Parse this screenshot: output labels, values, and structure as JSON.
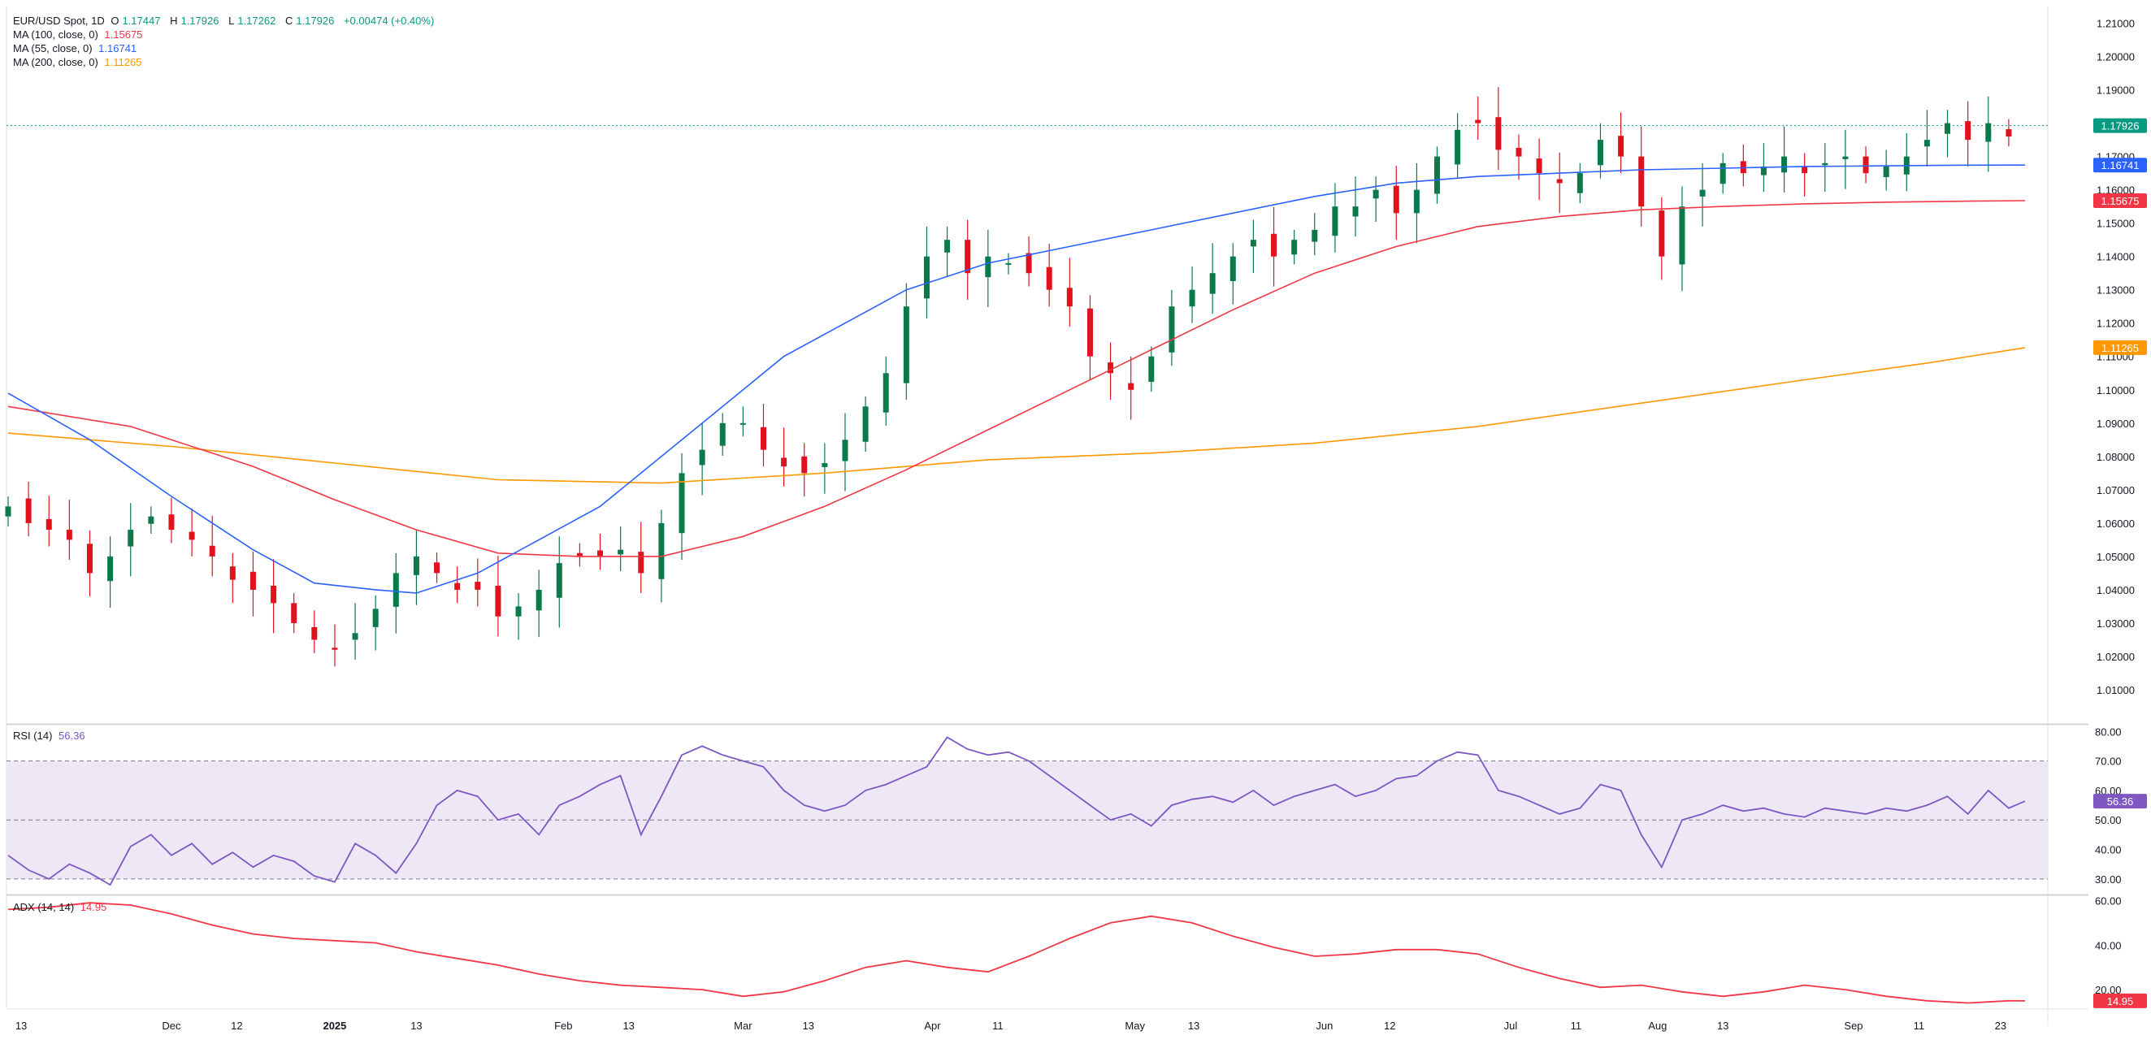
{
  "header": {
    "symbol": "EUR/USD Spot, 1D",
    "open_label": "O",
    "open": "1.17447",
    "high_label": "H",
    "high": "1.17926",
    "low_label": "L",
    "low": "1.17262",
    "close_label": "C",
    "close": "1.17926",
    "change": "+0.00474 (+0.40%)"
  },
  "indicators": [
    {
      "label": "MA (100, close, 0)",
      "value": "1.15675",
      "color": "#f23645"
    },
    {
      "label": "MA (55, close, 0)",
      "value": "1.16741",
      "color": "#2962ff"
    },
    {
      "label": "MA (200, close, 0)",
      "value": "1.11265",
      "color": "#ff9800"
    }
  ],
  "rsi": {
    "label": "RSI (14)",
    "value": "56.36",
    "color": "#7e57c2"
  },
  "adx": {
    "label": "ADX (14, 14)",
    "value": "14.95",
    "color": "#f23645"
  },
  "colors": {
    "up": "#089981",
    "down": "#f23645",
    "candle_up": "#0b7a4b",
    "candle_down": "#e0121e",
    "grid": "#f0f3fa",
    "rsi_band": "#ede7f6"
  },
  "chart_data": [
    {
      "type": "candlestick",
      "title": "EUR/USD Spot, 1D",
      "y_ticks": [
        "1.21000",
        "1.20000",
        "1.19000",
        "1.18000",
        "1.17000",
        "1.16000",
        "1.15000",
        "1.14000",
        "1.13000",
        "1.12000",
        "1.11000",
        "1.10000",
        "1.09000",
        "1.08000",
        "1.07000",
        "1.06000",
        "1.05000",
        "1.04000",
        "1.03000",
        "1.02000",
        "1.01000"
      ],
      "ylim": [
        1.0,
        1.215
      ],
      "x_ticks": [
        "13",
        "Dec",
        "12",
        "2025",
        "13",
        "Feb",
        "13",
        "Mar",
        "13",
        "Apr",
        "11",
        "May",
        "13",
        "Jun",
        "12",
        "Jul",
        "11",
        "Aug",
        "13",
        "Sep",
        "11",
        "23"
      ],
      "last_price": "1.17926",
      "price_badges": [
        {
          "value": "1.17926",
          "color": "#089981"
        },
        {
          "value": "1.16741",
          "color": "#2962ff"
        },
        {
          "value": "1.15675",
          "color": "#f23645"
        },
        {
          "value": "1.11265",
          "color": "#ff9800"
        }
      ],
      "close_path": [
        [
          0,
          1.065
        ],
        [
          5,
          1.06
        ],
        [
          10,
          1.058
        ],
        [
          15,
          1.055
        ],
        [
          20,
          1.045
        ],
        [
          25,
          1.05
        ],
        [
          30,
          1.058
        ],
        [
          35,
          1.062
        ],
        [
          40,
          1.058
        ],
        [
          45,
          1.055
        ],
        [
          50,
          1.05
        ],
        [
          55,
          1.043
        ],
        [
          60,
          1.04
        ],
        [
          65,
          1.036
        ],
        [
          70,
          1.03
        ],
        [
          75,
          1.025
        ],
        [
          80,
          1.022
        ],
        [
          88,
          1.03
        ],
        [
          95,
          1.045
        ],
        [
          100,
          1.05
        ],
        [
          105,
          1.045
        ],
        [
          110,
          1.04
        ],
        [
          115,
          1.04
        ],
        [
          120,
          1.032
        ],
        [
          125,
          1.035
        ],
        [
          130,
          1.04
        ],
        [
          135,
          1.048
        ],
        [
          140,
          1.05
        ],
        [
          145,
          1.05
        ],
        [
          150,
          1.052
        ],
        [
          155,
          1.045
        ],
        [
          160,
          1.06
        ],
        [
          165,
          1.075
        ],
        [
          170,
          1.082
        ],
        [
          175,
          1.09
        ],
        [
          180,
          1.09
        ],
        [
          185,
          1.082
        ],
        [
          190,
          1.077
        ],
        [
          195,
          1.075
        ],
        [
          200,
          1.078
        ],
        [
          205,
          1.085
        ],
        [
          210,
          1.095
        ],
        [
          215,
          1.105
        ],
        [
          220,
          1.125
        ],
        [
          225,
          1.14
        ],
        [
          230,
          1.145
        ],
        [
          235,
          1.135
        ],
        [
          240,
          1.14
        ],
        [
          245,
          1.138
        ],
        [
          250,
          1.135
        ],
        [
          255,
          1.13
        ],
        [
          260,
          1.125
        ],
        [
          265,
          1.11
        ],
        [
          270,
          1.105
        ],
        [
          275,
          1.1
        ],
        [
          280,
          1.11
        ],
        [
          285,
          1.125
        ],
        [
          290,
          1.13
        ],
        [
          295,
          1.135
        ],
        [
          300,
          1.14
        ],
        [
          305,
          1.145
        ],
        [
          310,
          1.14
        ],
        [
          315,
          1.145
        ],
        [
          320,
          1.148
        ],
        [
          325,
          1.155
        ],
        [
          330,
          1.155
        ],
        [
          335,
          1.16
        ],
        [
          340,
          1.153
        ],
        [
          345,
          1.16
        ],
        [
          350,
          1.17
        ],
        [
          355,
          1.178
        ],
        [
          360,
          1.18
        ],
        [
          365,
          1.172
        ],
        [
          370,
          1.17
        ],
        [
          375,
          1.165
        ],
        [
          380,
          1.162
        ],
        [
          385,
          1.165
        ],
        [
          390,
          1.175
        ],
        [
          395,
          1.17
        ],
        [
          400,
          1.155
        ],
        [
          405,
          1.14
        ],
        [
          410,
          1.155
        ],
        [
          415,
          1.16
        ],
        [
          420,
          1.168
        ],
        [
          425,
          1.165
        ],
        [
          430,
          1.167
        ],
        [
          435,
          1.17
        ],
        [
          440,
          1.165
        ],
        [
          445,
          1.168
        ],
        [
          450,
          1.17
        ],
        [
          455,
          1.165
        ],
        [
          460,
          1.167
        ],
        [
          465,
          1.17
        ],
        [
          470,
          1.175
        ],
        [
          475,
          1.18
        ],
        [
          480,
          1.175
        ],
        [
          485,
          1.18
        ],
        [
          490,
          1.176
        ],
        [
          494,
          1.179
        ]
      ],
      "candle_step": 5,
      "ma55": [
        [
          0,
          1.099
        ],
        [
          20,
          1.085
        ],
        [
          40,
          1.068
        ],
        [
          60,
          1.052
        ],
        [
          75,
          1.042
        ],
        [
          90,
          1.04
        ],
        [
          100,
          1.039
        ],
        [
          115,
          1.045
        ],
        [
          130,
          1.055
        ],
        [
          145,
          1.065
        ],
        [
          160,
          1.08
        ],
        [
          175,
          1.095
        ],
        [
          190,
          1.11
        ],
        [
          205,
          1.12
        ],
        [
          220,
          1.13
        ],
        [
          240,
          1.138
        ],
        [
          260,
          1.143
        ],
        [
          280,
          1.148
        ],
        [
          300,
          1.153
        ],
        [
          320,
          1.158
        ],
        [
          340,
          1.162
        ],
        [
          360,
          1.164
        ],
        [
          380,
          1.165
        ],
        [
          400,
          1.166
        ],
        [
          420,
          1.1665
        ],
        [
          440,
          1.167
        ],
        [
          460,
          1.1672
        ],
        [
          480,
          1.1674
        ],
        [
          494,
          1.16741
        ]
      ],
      "ma100": [
        [
          0,
          1.095
        ],
        [
          30,
          1.089
        ],
        [
          60,
          1.077
        ],
        [
          80,
          1.067
        ],
        [
          100,
          1.058
        ],
        [
          120,
          1.051
        ],
        [
          140,
          1.05
        ],
        [
          160,
          1.05
        ],
        [
          180,
          1.056
        ],
        [
          200,
          1.065
        ],
        [
          220,
          1.076
        ],
        [
          240,
          1.088
        ],
        [
          260,
          1.1
        ],
        [
          280,
          1.112
        ],
        [
          300,
          1.124
        ],
        [
          320,
          1.135
        ],
        [
          340,
          1.143
        ],
        [
          360,
          1.149
        ],
        [
          380,
          1.152
        ],
        [
          400,
          1.154
        ],
        [
          420,
          1.155
        ],
        [
          440,
          1.1558
        ],
        [
          460,
          1.1563
        ],
        [
          480,
          1.1566
        ],
        [
          494,
          1.15675
        ]
      ],
      "ma200": [
        [
          0,
          1.087
        ],
        [
          40,
          1.083
        ],
        [
          80,
          1.078
        ],
        [
          120,
          1.073
        ],
        [
          160,
          1.072
        ],
        [
          200,
          1.075
        ],
        [
          240,
          1.079
        ],
        [
          280,
          1.081
        ],
        [
          320,
          1.084
        ],
        [
          360,
          1.089
        ],
        [
          400,
          1.096
        ],
        [
          440,
          1.103
        ],
        [
          470,
          1.108
        ],
        [
          494,
          1.11265
        ]
      ]
    },
    {
      "type": "line",
      "title": "RSI (14)",
      "y_ticks": [
        "80.00",
        "70.00",
        "60.00",
        "50.00",
        "40.00",
        "30.00"
      ],
      "ylim": [
        25,
        82
      ],
      "band": [
        30,
        70
      ],
      "mid_line": 50,
      "last_value": "56.36",
      "points": [
        [
          0,
          38
        ],
        [
          5,
          33
        ],
        [
          10,
          30
        ],
        [
          15,
          35
        ],
        [
          20,
          32
        ],
        [
          25,
          28
        ],
        [
          30,
          41
        ],
        [
          35,
          45
        ],
        [
          40,
          38
        ],
        [
          45,
          42
        ],
        [
          50,
          35
        ],
        [
          55,
          39
        ],
        [
          60,
          34
        ],
        [
          65,
          38
        ],
        [
          70,
          36
        ],
        [
          75,
          31
        ],
        [
          80,
          29
        ],
        [
          85,
          42
        ],
        [
          90,
          38
        ],
        [
          95,
          32
        ],
        [
          100,
          42
        ],
        [
          105,
          55
        ],
        [
          110,
          60
        ],
        [
          115,
          58
        ],
        [
          120,
          50
        ],
        [
          125,
          52
        ],
        [
          130,
          45
        ],
        [
          135,
          55
        ],
        [
          140,
          58
        ],
        [
          145,
          62
        ],
        [
          150,
          65
        ],
        [
          155,
          45
        ],
        [
          160,
          58
        ],
        [
          165,
          72
        ],
        [
          170,
          75
        ],
        [
          175,
          72
        ],
        [
          180,
          70
        ],
        [
          185,
          68
        ],
        [
          190,
          60
        ],
        [
          195,
          55
        ],
        [
          200,
          53
        ],
        [
          205,
          55
        ],
        [
          210,
          60
        ],
        [
          215,
          62
        ],
        [
          220,
          65
        ],
        [
          225,
          68
        ],
        [
          230,
          78
        ],
        [
          235,
          74
        ],
        [
          240,
          72
        ],
        [
          245,
          73
        ],
        [
          250,
          70
        ],
        [
          255,
          65
        ],
        [
          260,
          60
        ],
        [
          265,
          55
        ],
        [
          270,
          50
        ],
        [
          275,
          52
        ],
        [
          280,
          48
        ],
        [
          285,
          55
        ],
        [
          290,
          57
        ],
        [
          295,
          58
        ],
        [
          300,
          56
        ],
        [
          305,
          60
        ],
        [
          310,
          55
        ],
        [
          315,
          58
        ],
        [
          320,
          60
        ],
        [
          325,
          62
        ],
        [
          330,
          58
        ],
        [
          335,
          60
        ],
        [
          340,
          64
        ],
        [
          345,
          65
        ],
        [
          350,
          70
        ],
        [
          355,
          73
        ],
        [
          360,
          72
        ],
        [
          365,
          60
        ],
        [
          370,
          58
        ],
        [
          375,
          55
        ],
        [
          380,
          52
        ],
        [
          385,
          54
        ],
        [
          390,
          62
        ],
        [
          395,
          60
        ],
        [
          400,
          45
        ],
        [
          405,
          34
        ],
        [
          410,
          50
        ],
        [
          415,
          52
        ],
        [
          420,
          55
        ],
        [
          425,
          53
        ],
        [
          430,
          54
        ],
        [
          435,
          52
        ],
        [
          440,
          51
        ],
        [
          445,
          54
        ],
        [
          450,
          53
        ],
        [
          455,
          52
        ],
        [
          460,
          54
        ],
        [
          465,
          53
        ],
        [
          470,
          55
        ],
        [
          475,
          58
        ],
        [
          480,
          52
        ],
        [
          485,
          60
        ],
        [
          490,
          54
        ],
        [
          494,
          56.36
        ]
      ]
    },
    {
      "type": "line",
      "title": "ADX (14, 14)",
      "y_ticks": [
        "60.00",
        "40.00",
        "20.00"
      ],
      "ylim": [
        12,
        62
      ],
      "last_value": "14.95",
      "points": [
        [
          0,
          56
        ],
        [
          10,
          57
        ],
        [
          20,
          59
        ],
        [
          30,
          58
        ],
        [
          40,
          54
        ],
        [
          50,
          49
        ],
        [
          60,
          45
        ],
        [
          70,
          43
        ],
        [
          80,
          42
        ],
        [
          90,
          41
        ],
        [
          100,
          37
        ],
        [
          110,
          34
        ],
        [
          120,
          31
        ],
        [
          130,
          27
        ],
        [
          140,
          24
        ],
        [
          150,
          22
        ],
        [
          160,
          21
        ],
        [
          170,
          20
        ],
        [
          180,
          17
        ],
        [
          190,
          19
        ],
        [
          200,
          24
        ],
        [
          210,
          30
        ],
        [
          220,
          33
        ],
        [
          230,
          30
        ],
        [
          240,
          28
        ],
        [
          250,
          35
        ],
        [
          260,
          43
        ],
        [
          270,
          50
        ],
        [
          280,
          53
        ],
        [
          290,
          50
        ],
        [
          300,
          44
        ],
        [
          310,
          39
        ],
        [
          320,
          35
        ],
        [
          330,
          36
        ],
        [
          340,
          38
        ],
        [
          350,
          38
        ],
        [
          360,
          36
        ],
        [
          370,
          30
        ],
        [
          380,
          25
        ],
        [
          390,
          21
        ],
        [
          400,
          22
        ],
        [
          410,
          19
        ],
        [
          420,
          17
        ],
        [
          430,
          19
        ],
        [
          440,
          22
        ],
        [
          450,
          20
        ],
        [
          460,
          17
        ],
        [
          470,
          15
        ],
        [
          480,
          14
        ],
        [
          490,
          15
        ],
        [
          494,
          14.95
        ]
      ]
    }
  ]
}
